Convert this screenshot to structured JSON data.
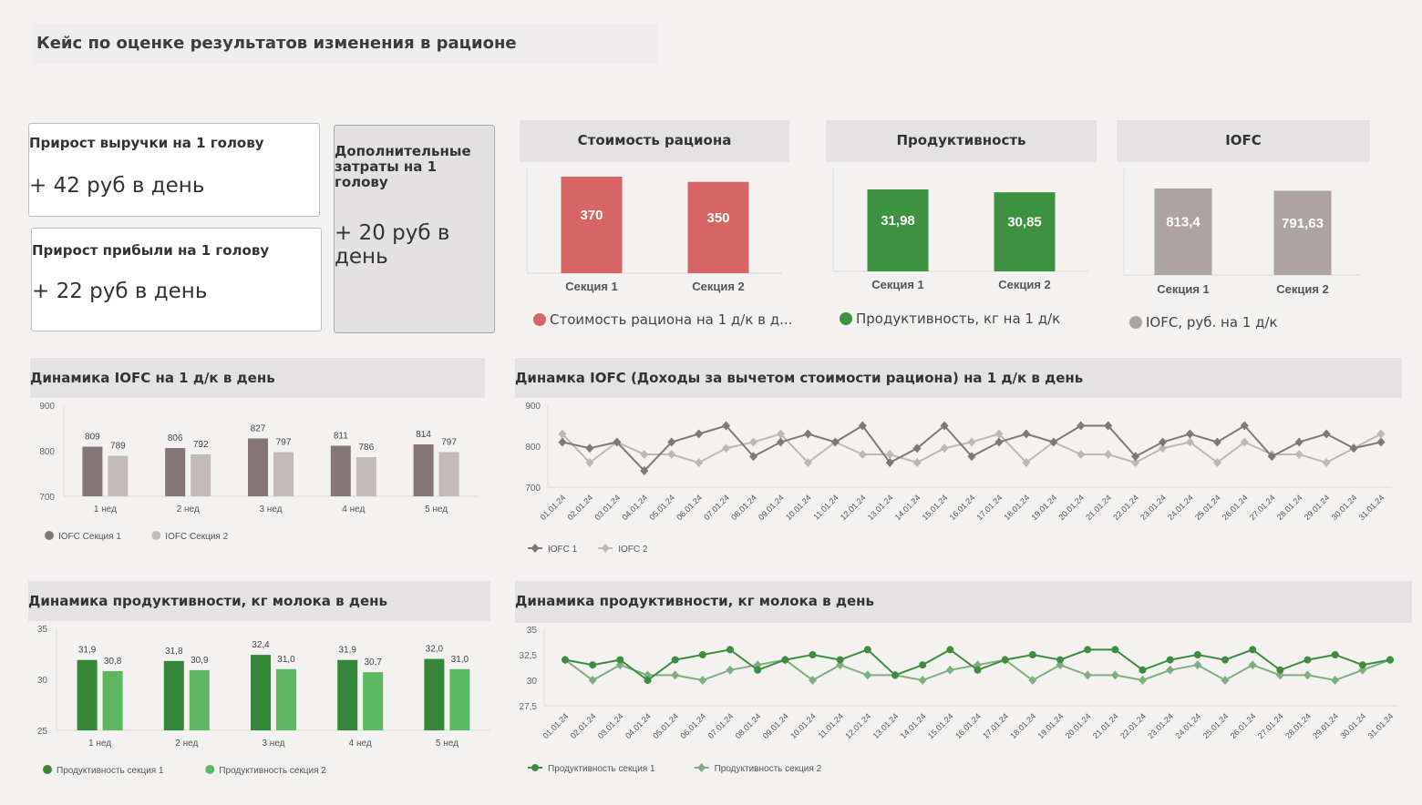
{
  "header": {
    "title": "Кейс по оценке результатов изменения в рационе"
  },
  "kpis": {
    "revenue": {
      "label": "Прирост выручки на 1 голову",
      "value": "+ 42 руб в день"
    },
    "profit": {
      "label": "Прирост прибыли на 1 голову",
      "value": "+ 22 руб в день"
    },
    "extra_costs": {
      "label": "Дополнительные затраты на 1 голову",
      "value": "+ 20 руб в день"
    }
  },
  "chart_data": [
    {
      "id": "cost",
      "type": "bar",
      "title": "Стоимость рациона",
      "categories": [
        "Секция 1",
        "Секция 2"
      ],
      "labels": [
        "370",
        "350"
      ],
      "values": [
        370,
        350
      ],
      "color": "#d86565",
      "legend": "Стоимость рациона на 1 д/к в д...",
      "ylim": [
        0,
        370
      ]
    },
    {
      "id": "prod",
      "type": "bar",
      "title": "Продуктивность",
      "categories": [
        "Секция 1",
        "Секция 2"
      ],
      "labels": [
        "31,98",
        "30,85"
      ],
      "values": [
        31.98,
        30.85
      ],
      "color": "#3d9140",
      "legend": "Продуктивность, кг на 1 д/к",
      "ylim": [
        0,
        31.98
      ]
    },
    {
      "id": "iofc",
      "type": "bar",
      "title": "IOFC",
      "categories": [
        "Секция 1",
        "Секция 2"
      ],
      "labels": [
        "813,4",
        "791,63"
      ],
      "values": [
        813.4,
        791.63
      ],
      "color": "#ada3a3",
      "legend": "IOFC, руб. на 1 д/к",
      "ylim": [
        0,
        813.4
      ]
    },
    {
      "id": "iofc_weekly",
      "type": "bar",
      "title": "Динамика IOFC на 1 д/к в день",
      "categories": [
        "1 нед",
        "2 нед",
        "3 нед",
        "4 нед",
        "5 нед"
      ],
      "yticks": [
        "900",
        "800",
        "700"
      ],
      "ylim": [
        700,
        900
      ],
      "series": [
        {
          "name": "IOFC Секция 1",
          "values": [
            809,
            806,
            827,
            811,
            814
          ],
          "labels": [
            "809",
            "806",
            "827",
            "811",
            "814"
          ],
          "color": "#847676"
        },
        {
          "name": "IOFC Секция 2",
          "values": [
            789,
            792,
            797,
            786,
            797
          ],
          "labels": [
            "789",
            "792",
            "797",
            "786",
            "797"
          ],
          "color": "#c3bbbb"
        }
      ]
    },
    {
      "id": "iofc_daily",
      "type": "line",
      "title": "Динамка IOFC (Доходы за вычетом стоимости рациона) на 1 д/к в день",
      "yticks": [
        "900",
        "800",
        "700"
      ],
      "ylim": [
        700,
        900
      ],
      "x": [
        "01.01.24",
        "02.01.24",
        "03.01.24",
        "04.01.24",
        "05.01.24",
        "06.01.24",
        "07.01.24",
        "08.01.24",
        "09.01.24",
        "10.01.24",
        "11.01.24",
        "12.01.24",
        "13.01.24",
        "14.01.24",
        "15.01.24",
        "16.01.24",
        "17.01.24",
        "18.01.24",
        "19.01.24",
        "20.01.24",
        "21.01.24",
        "22.01.24",
        "23.01.24",
        "24.01.24",
        "25.01.24",
        "26.01.24",
        "27.01.24",
        "28.01.24",
        "29.01.24",
        "30.01.24",
        "31.01.24"
      ],
      "series": [
        {
          "name": "IOFC 1",
          "color": "#847676",
          "marker": "diamond",
          "values": [
            810,
            795,
            810,
            740,
            810,
            830,
            850,
            775,
            810,
            830,
            810,
            850,
            760,
            795,
            850,
            775,
            810,
            830,
            810,
            850,
            850,
            775,
            810,
            830,
            810,
            850,
            775,
            810,
            830,
            795,
            810
          ]
        },
        {
          "name": "IOFC 2",
          "color": "#bdb8b8",
          "marker": "diamond",
          "values": [
            830,
            760,
            810,
            780,
            780,
            760,
            795,
            810,
            830,
            760,
            810,
            780,
            780,
            760,
            795,
            810,
            830,
            760,
            810,
            780,
            780,
            760,
            795,
            810,
            760,
            810,
            780,
            780,
            760,
            795,
            830
          ]
        }
      ]
    },
    {
      "id": "prod_weekly",
      "type": "bar",
      "title": "Динамика продуктивности, кг молока в день",
      "categories": [
        "1 нед",
        "2 нед",
        "3 нед",
        "4 нед",
        "5 нед"
      ],
      "yticks": [
        "35",
        "30",
        "25"
      ],
      "ylim": [
        25,
        35
      ],
      "series": [
        {
          "name": "Продуктивность секция 1",
          "values": [
            31.9,
            31.8,
            32.4,
            31.9,
            32.0
          ],
          "labels": [
            "31,9",
            "31,8",
            "32,4",
            "31,9",
            "32,0"
          ],
          "color": "#35883a"
        },
        {
          "name": "Продуктивность секция 2",
          "values": [
            30.8,
            30.9,
            31.0,
            30.7,
            31.0
          ],
          "labels": [
            "30,8",
            "30,9",
            "31,0",
            "30,7",
            "31,0"
          ],
          "color": "#5cb85f"
        }
      ]
    },
    {
      "id": "prod_daily",
      "type": "line",
      "title": "Динамика продуктивности, кг молока в день",
      "yticks": [
        "35",
        "32,5",
        "30",
        "27,5"
      ],
      "ylim": [
        27.5,
        35
      ],
      "x": [
        "01.01.24",
        "02.01.24",
        "03.01.24",
        "04.01.24",
        "05.01.24",
        "06.01.24",
        "07.01.24",
        "08.01.24",
        "09.01.24",
        "10.01.24",
        "11.01.24",
        "12.01.24",
        "13.01.24",
        "14.01.24",
        "15.01.24",
        "16.01.24",
        "17.01.24",
        "18.01.24",
        "19.01.24",
        "20.01.24",
        "21.01.24",
        "22.01.24",
        "23.01.24",
        "24.01.24",
        "25.01.24",
        "26.01.24",
        "27.01.24",
        "28.01.24",
        "29.01.24",
        "30.01.24",
        "31.01.24"
      ],
      "series": [
        {
          "name": "Продуктивность секция 1",
          "color": "#3d8c3f",
          "marker": "circle",
          "values": [
            32,
            31.5,
            32,
            30,
            32,
            32.5,
            33,
            31,
            32,
            32.5,
            32,
            33,
            30.5,
            31.5,
            33,
            31,
            32,
            32.5,
            32,
            33,
            33,
            31,
            32,
            32.5,
            32,
            33,
            31,
            32,
            32.5,
            31.5,
            32
          ]
        },
        {
          "name": "Продуктивность секция 2",
          "color": "#7fae80",
          "marker": "diamond",
          "values": [
            32,
            30,
            31.5,
            30.5,
            30.5,
            30,
            31,
            31.5,
            32,
            30,
            31.5,
            30.5,
            30.5,
            30,
            31,
            31.5,
            32,
            30,
            31.5,
            30.5,
            30.5,
            30,
            31,
            31.5,
            30,
            31.5,
            30.5,
            30.5,
            30,
            31,
            32
          ]
        }
      ]
    }
  ]
}
